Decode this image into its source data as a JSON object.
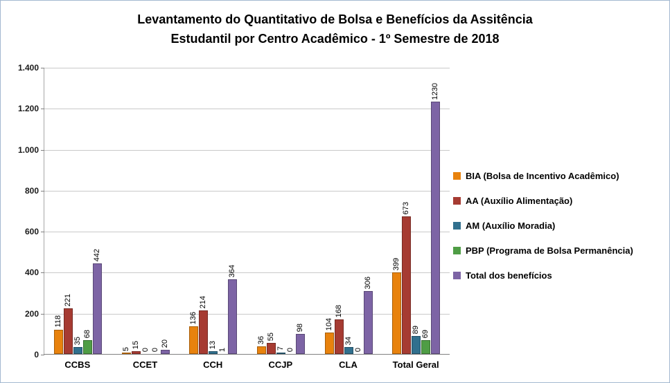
{
  "title": {
    "line1": "Levantamento do Quantitativo de Bolsa e Benefícios da Assitência",
    "line2": "Estudantil  por Centro Acadêmico - 1º Semestre de 2018"
  },
  "chart_data": {
    "type": "bar",
    "title": "Levantamento do Quantitativo de Bolsa e Benefícios da Assitência Estudantil por Centro Acadêmico - 1º Semestre de 2018",
    "categories": [
      "CCBS",
      "CCET",
      "CCH",
      "CCJP",
      "CLA",
      "Total Geral"
    ],
    "series": [
      {
        "name": "BIA (Bolsa de Incentivo Acadêmico)",
        "color": "#E8820D",
        "border_color": "#A85E09",
        "values": [
          118,
          5,
          136,
          36,
          104,
          399
        ]
      },
      {
        "name": "AA (Auxílio Alimentação)",
        "color": "#A63B32",
        "border_color": "#772A24",
        "values": [
          221,
          15,
          214,
          55,
          168,
          673
        ]
      },
      {
        "name": "AM (Auxílio Moradia)",
        "color": "#31708E",
        "border_color": "#235065",
        "values": [
          35,
          0,
          13,
          7,
          34,
          89
        ]
      },
      {
        "name": "PBP (Programa de Bolsa Permanência)",
        "color": "#4F9D45",
        "border_color": "#397031",
        "values": [
          68,
          0,
          1,
          0,
          0,
          69
        ]
      },
      {
        "name": "Total dos benefícios",
        "color": "#7D64A5",
        "border_color": "#594876",
        "values": [
          442,
          20,
          364,
          98,
          306,
          1230
        ]
      }
    ],
    "y_axis": {
      "min": 0,
      "max": 1400,
      "tick_step": 200,
      "tick_labels": [
        "0",
        "200",
        "400",
        "600",
        "800",
        "1.000",
        "1.200",
        "1.400"
      ]
    },
    "value_labels": "vertical, above each bar",
    "legend_position": "right",
    "grid": true
  }
}
